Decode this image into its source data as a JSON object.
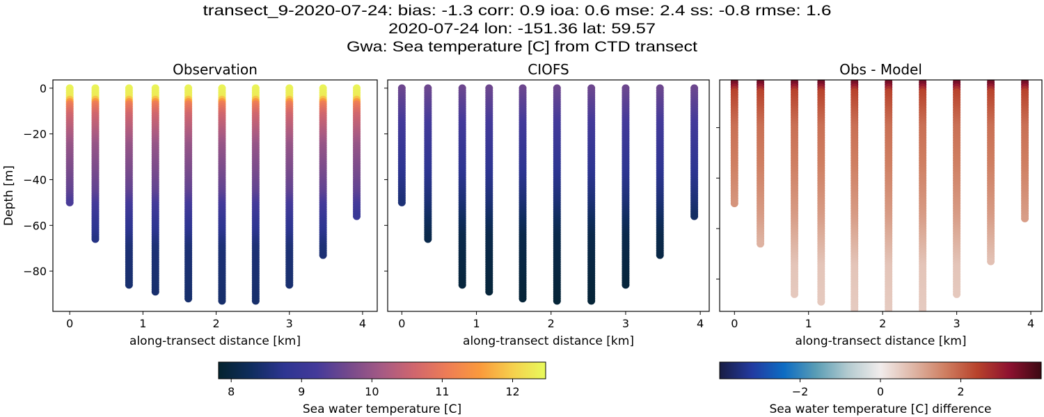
{
  "chart_data": {
    "type": "scatter",
    "title_lines": [
      "transect_9-2020-07-24: bias: -1.3  corr: 0.9  ioa: 0.6  mse: 2.4  ss: -0.8  rmse: 1.6",
      "2020-07-24 lon: -151.36 lat: 59.57",
      "Gwa: Sea temperature [C] from CTD transect"
    ],
    "stations": [
      {
        "distance_km": 0.0,
        "max_depth_m": -50
      },
      {
        "distance_km": 0.35,
        "max_depth_m": -66
      },
      {
        "distance_km": 0.81,
        "max_depth_m": -86
      },
      {
        "distance_km": 1.17,
        "max_depth_m": -89
      },
      {
        "distance_km": 1.62,
        "max_depth_m": -92
      },
      {
        "distance_km": 2.08,
        "max_depth_m": -93
      },
      {
        "distance_km": 2.54,
        "max_depth_m": -93
      },
      {
        "distance_km": 3.0,
        "max_depth_m": -86
      },
      {
        "distance_km": 3.46,
        "max_depth_m": -73
      },
      {
        "distance_km": 3.92,
        "max_depth_m": -56
      }
    ],
    "panels": [
      {
        "title": "Observation",
        "xlabel": "along-transect distance [km]",
        "ylabel": "Depth [m]",
        "xlim": [
          -0.23,
          4.2
        ],
        "ylim": [
          -97.6,
          3.6
        ],
        "xticks": [
          0,
          1,
          2,
          3,
          4
        ],
        "yticks": [
          0,
          -20,
          -40,
          -60,
          -80
        ],
        "ytick_labels": [
          "0",
          "−20",
          "−40",
          "−60",
          "−80"
        ],
        "colormap": "thermal",
        "profile_depth_value": [
          [
            0,
            12.4
          ],
          [
            -4,
            12.3
          ],
          [
            -7,
            11.1
          ],
          [
            -12,
            10.6
          ],
          [
            -25,
            10.0
          ],
          [
            -45,
            9.5
          ],
          [
            -58,
            8.9
          ],
          [
            -70,
            8.5
          ],
          [
            -95,
            8.4
          ]
        ]
      },
      {
        "title": "CIOFS",
        "xlabel": "along-transect distance [km]",
        "xlim": [
          -0.19,
          4.12
        ],
        "ylim": [
          -97.6,
          3.6
        ],
        "xticks": [
          0,
          1,
          2,
          3,
          4
        ],
        "yticks": [
          0,
          -20,
          -40,
          -60,
          -80
        ],
        "colormap": "thermal",
        "profile_depth_value": [
          [
            0,
            9.6
          ],
          [
            -20,
            9.1
          ],
          [
            -35,
            8.8
          ],
          [
            -50,
            8.5
          ],
          [
            -65,
            8.1
          ],
          [
            -95,
            7.9
          ]
        ]
      },
      {
        "title": "Obs - Model",
        "xlabel": "along-transect distance [km]",
        "xlim": [
          -0.2,
          4.15
        ],
        "ylim": [
          -92.8,
          -1.1
        ],
        "xticks": [
          0,
          1,
          2,
          3,
          4
        ],
        "yticks": [
          -20,
          -40,
          -60,
          -80
        ],
        "colormap": "balance",
        "profile_depth_value": [
          [
            0,
            3.7
          ],
          [
            -3,
            3.4
          ],
          [
            -6,
            2.4
          ],
          [
            -20,
            1.8
          ],
          [
            -35,
            1.6
          ],
          [
            -55,
            1.2
          ],
          [
            -75,
            0.6
          ],
          [
            -95,
            0.5
          ]
        ]
      }
    ],
    "colorbars": [
      {
        "label": "Sea water temperature [C]",
        "range": [
          7.82,
          12.47
        ],
        "ticks": [
          8,
          9,
          10,
          11,
          12
        ],
        "colormap": "thermal"
      },
      {
        "label": "Sea water temperature [C] difference",
        "range": [
          -4.0,
          4.0
        ],
        "ticks": [
          -2,
          0,
          2
        ],
        "tick_labels": [
          "−2",
          "0",
          "2"
        ],
        "colormap": "balance"
      }
    ],
    "colormaps": {
      "thermal": [
        "#04232f",
        "#0f2d5e",
        "#2d3591",
        "#443a9a",
        "#764a8c",
        "#a65a84",
        "#d1666d",
        "#ee7d55",
        "#fa9a3c",
        "#f5d04d",
        "#e8fa5b"
      ],
      "balance": [
        "#181c43",
        "#223aa0",
        "#0d6cc3",
        "#5a9db5",
        "#b4cbd0",
        "#f1ecec",
        "#dfb7a7",
        "#cf7f62",
        "#b8432c",
        "#8e1230",
        "#3c0912"
      ]
    }
  }
}
